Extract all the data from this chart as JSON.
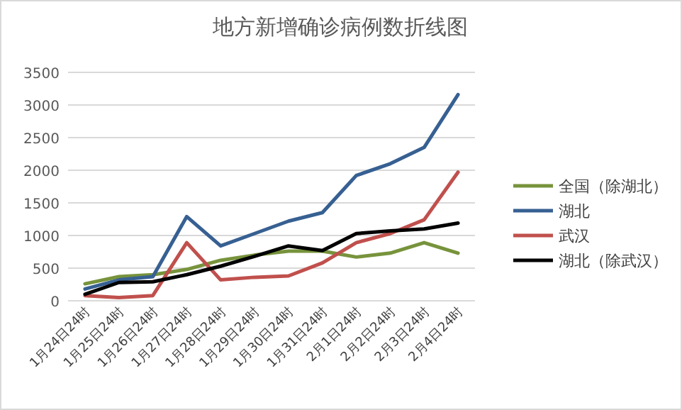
{
  "chart_data": {
    "type": "line",
    "title": "地方新增确诊病例数折线图",
    "categories": [
      "1月24日24时",
      "1月25日24时",
      "1月26日24时",
      "1月27日24时",
      "1月28日24时",
      "1月29日24时",
      "1月30日24时",
      "1月31日24时",
      "2月1日24时",
      "2月2日24时",
      "2月3日24时",
      "2月4日24时"
    ],
    "series": [
      {
        "name": "全国（除湖北）",
        "color": "#77933c",
        "values": [
          260,
          370,
          400,
          480,
          620,
          700,
          760,
          760,
          670,
          730,
          890,
          730
        ]
      },
      {
        "name": "湖北",
        "color": "#376092",
        "values": [
          180,
          320,
          370,
          1290,
          840,
          1030,
          1220,
          1350,
          1920,
          2100,
          2350,
          3160
        ]
      },
      {
        "name": "武汉",
        "color": "#c0504d",
        "values": [
          80,
          50,
          80,
          890,
          320,
          360,
          380,
          580,
          890,
          1030,
          1240,
          1970
        ]
      },
      {
        "name": "湖北（除武汉）",
        "color": "#000000",
        "values": [
          100,
          280,
          290,
          400,
          530,
          680,
          840,
          770,
          1030,
          1070,
          1100,
          1190
        ]
      }
    ],
    "ylim": [
      0,
      3500
    ],
    "yticks": [
      0,
      500,
      1000,
      1500,
      2000,
      2500,
      3000,
      3500
    ],
    "grid": "y",
    "legend": "right",
    "marker": "none",
    "line_style": "solid"
  }
}
